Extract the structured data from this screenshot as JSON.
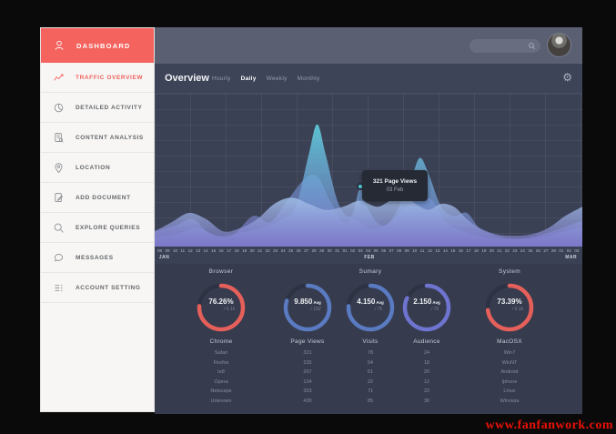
{
  "watermark": "www.fanfanwork.com",
  "sidebar": {
    "header": {
      "label": "DASHBOARD"
    },
    "items": [
      {
        "label": "TRAFFIC OVERVIEW",
        "icon": "line-chart-icon",
        "active": true
      },
      {
        "label": "DETAILED ACTIVITY",
        "icon": "pie-chart-icon",
        "active": false
      },
      {
        "label": "CONTENT ANALYSIS",
        "icon": "document-icon",
        "active": false
      },
      {
        "label": "LOCATION",
        "icon": "location-pin-icon",
        "active": false
      },
      {
        "label": "ADD DOCUMENT",
        "icon": "add-document-icon",
        "active": false
      },
      {
        "label": "EXPLORE QUERIES",
        "icon": "search-icon",
        "active": false
      },
      {
        "label": "MESSAGES",
        "icon": "chat-icon",
        "active": false
      },
      {
        "label": "ACCOUNT SETTING",
        "icon": "settings-list-icon",
        "active": false
      }
    ]
  },
  "topbar": {
    "search_placeholder": ""
  },
  "overview": {
    "title": "Overview",
    "tabs": [
      {
        "label": "Hourly",
        "active": false
      },
      {
        "label": "Daily",
        "active": true
      },
      {
        "label": "Weekly",
        "active": false
      },
      {
        "label": "Monthly",
        "active": false
      }
    ],
    "settings_icon": "gear-icon",
    "gear_glyph": "⚙"
  },
  "chart_data": {
    "type": "area",
    "title": "Traffic Overview - Daily Page Views",
    "x_ticks": [
      "08",
      "09",
      "10",
      "11",
      "12",
      "13",
      "14",
      "15",
      "16",
      "17",
      "18",
      "19",
      "20",
      "21",
      "22",
      "23",
      "24",
      "25",
      "26",
      "27",
      "28",
      "29",
      "30",
      "31",
      "01",
      "02",
      "03",
      "04",
      "05",
      "06",
      "07",
      "08",
      "09",
      "10",
      "11",
      "12",
      "13",
      "14",
      "15",
      "16",
      "17",
      "18",
      "19",
      "20",
      "21",
      "22",
      "23",
      "24",
      "25",
      "26",
      "27",
      "28",
      "01",
      "02",
      "03"
    ],
    "months": [
      {
        "label": "JAN",
        "pos_pct": 1
      },
      {
        "label": "FEB",
        "pos_pct": 49
      },
      {
        "label": "MAR",
        "pos_pct": 96
      }
    ],
    "grid": true,
    "fade_color": "#817bd0",
    "series": [
      {
        "name": "pageviews-back",
        "color": "#5c7ca8",
        "opacity": 0.95,
        "points": [
          [
            0,
            10
          ],
          [
            5,
            14
          ],
          [
            9,
            18
          ],
          [
            13,
            8
          ],
          [
            18,
            7
          ],
          [
            23,
            20
          ],
          [
            27,
            16
          ],
          [
            31,
            30
          ],
          [
            35,
            44
          ],
          [
            38,
            46
          ],
          [
            41,
            30
          ],
          [
            44,
            16
          ],
          [
            47,
            18
          ],
          [
            50,
            12
          ],
          [
            54,
            14
          ],
          [
            58,
            24
          ],
          [
            62,
            33
          ],
          [
            65,
            30
          ],
          [
            68,
            16
          ],
          [
            72,
            10
          ],
          [
            76,
            7
          ],
          [
            80,
            5
          ],
          [
            84,
            5
          ],
          [
            88,
            6
          ],
          [
            92,
            9
          ],
          [
            96,
            13
          ],
          [
            100,
            17
          ]
        ]
      },
      {
        "name": "pageviews-mid",
        "color": "#5fd0e0",
        "opacity": 0.9,
        "points": [
          [
            0,
            6
          ],
          [
            5,
            8
          ],
          [
            10,
            12
          ],
          [
            15,
            7
          ],
          [
            20,
            9
          ],
          [
            25,
            12
          ],
          [
            30,
            18
          ],
          [
            33,
            26
          ],
          [
            36,
            60
          ],
          [
            38,
            80
          ],
          [
            40,
            60
          ],
          [
            43,
            28
          ],
          [
            46,
            20
          ],
          [
            48,
            38
          ],
          [
            50,
            24
          ],
          [
            53,
            14
          ],
          [
            56,
            20
          ],
          [
            60,
            45
          ],
          [
            62,
            58
          ],
          [
            64,
            48
          ],
          [
            67,
            26
          ],
          [
            70,
            20
          ],
          [
            73,
            22
          ],
          [
            76,
            12
          ],
          [
            80,
            7
          ],
          [
            84,
            5
          ],
          [
            88,
            5
          ],
          [
            92,
            7
          ],
          [
            96,
            10
          ],
          [
            100,
            13
          ]
        ]
      },
      {
        "name": "pageviews-front",
        "color": "#a5c6ea",
        "opacity": 0.85,
        "points": [
          [
            0,
            10
          ],
          [
            4,
            16
          ],
          [
            8,
            22
          ],
          [
            12,
            18
          ],
          [
            16,
            10
          ],
          [
            20,
            12
          ],
          [
            24,
            18
          ],
          [
            28,
            28
          ],
          [
            32,
            32
          ],
          [
            36,
            28
          ],
          [
            40,
            24
          ],
          [
            44,
            26
          ],
          [
            48,
            30
          ],
          [
            52,
            26
          ],
          [
            55,
            30
          ],
          [
            58,
            34
          ],
          [
            61,
            28
          ],
          [
            64,
            24
          ],
          [
            67,
            28
          ],
          [
            70,
            26
          ],
          [
            73,
            18
          ],
          [
            76,
            12
          ],
          [
            80,
            8
          ],
          [
            84,
            7
          ],
          [
            88,
            8
          ],
          [
            92,
            12
          ],
          [
            96,
            20
          ],
          [
            100,
            26
          ]
        ]
      }
    ],
    "tooltip": {
      "line1": "321 Page Views",
      "line2": "03 Feb",
      "value": 321,
      "date": "03 Feb"
    }
  },
  "stats": {
    "columns": [
      {
        "title": "Browser",
        "label": "Chrome",
        "gauge": {
          "value": "76.26%",
          "unit": "",
          "sub": "/ 6.1k",
          "pct": 76,
          "color": "#e6605b"
        },
        "rows": [
          "Safari",
          "Firefox",
          "Ie8",
          "Opera",
          "Netscape",
          "Unknown"
        ]
      },
      {
        "title": "",
        "label": "Page Views",
        "gauge": {
          "value": "9.850",
          "unit": "Avg",
          "sub": "/ 162",
          "pct": 80,
          "color": "#5a7ac2"
        },
        "rows": [
          "321",
          "235",
          "267",
          "124",
          "353",
          "430"
        ]
      },
      {
        "title": "Sumary",
        "label": "Visits",
        "gauge": {
          "value": "4.150",
          "unit": "Avg",
          "sub": "/ 76",
          "pct": 76,
          "color": "#5a7ac2"
        },
        "rows": [
          "78",
          "54",
          "61",
          "22",
          "71",
          "85"
        ]
      },
      {
        "title": "",
        "label": "Audience",
        "gauge": {
          "value": "2.150",
          "unit": "Avg",
          "sub": "/ 76",
          "pct": 82,
          "color": "#6e74cf"
        },
        "rows": [
          "24",
          "18",
          "20",
          "12",
          "22",
          "36"
        ]
      },
      {
        "title": "System",
        "label": "MacOSX",
        "gauge": {
          "value": "73.39%",
          "unit": "",
          "sub": "/ 6.1k",
          "pct": 73,
          "color": "#e6605b"
        },
        "rows": [
          "Win7",
          "WinNT",
          "Android",
          "Iphone",
          "Linux",
          "Winvista"
        ]
      }
    ]
  }
}
